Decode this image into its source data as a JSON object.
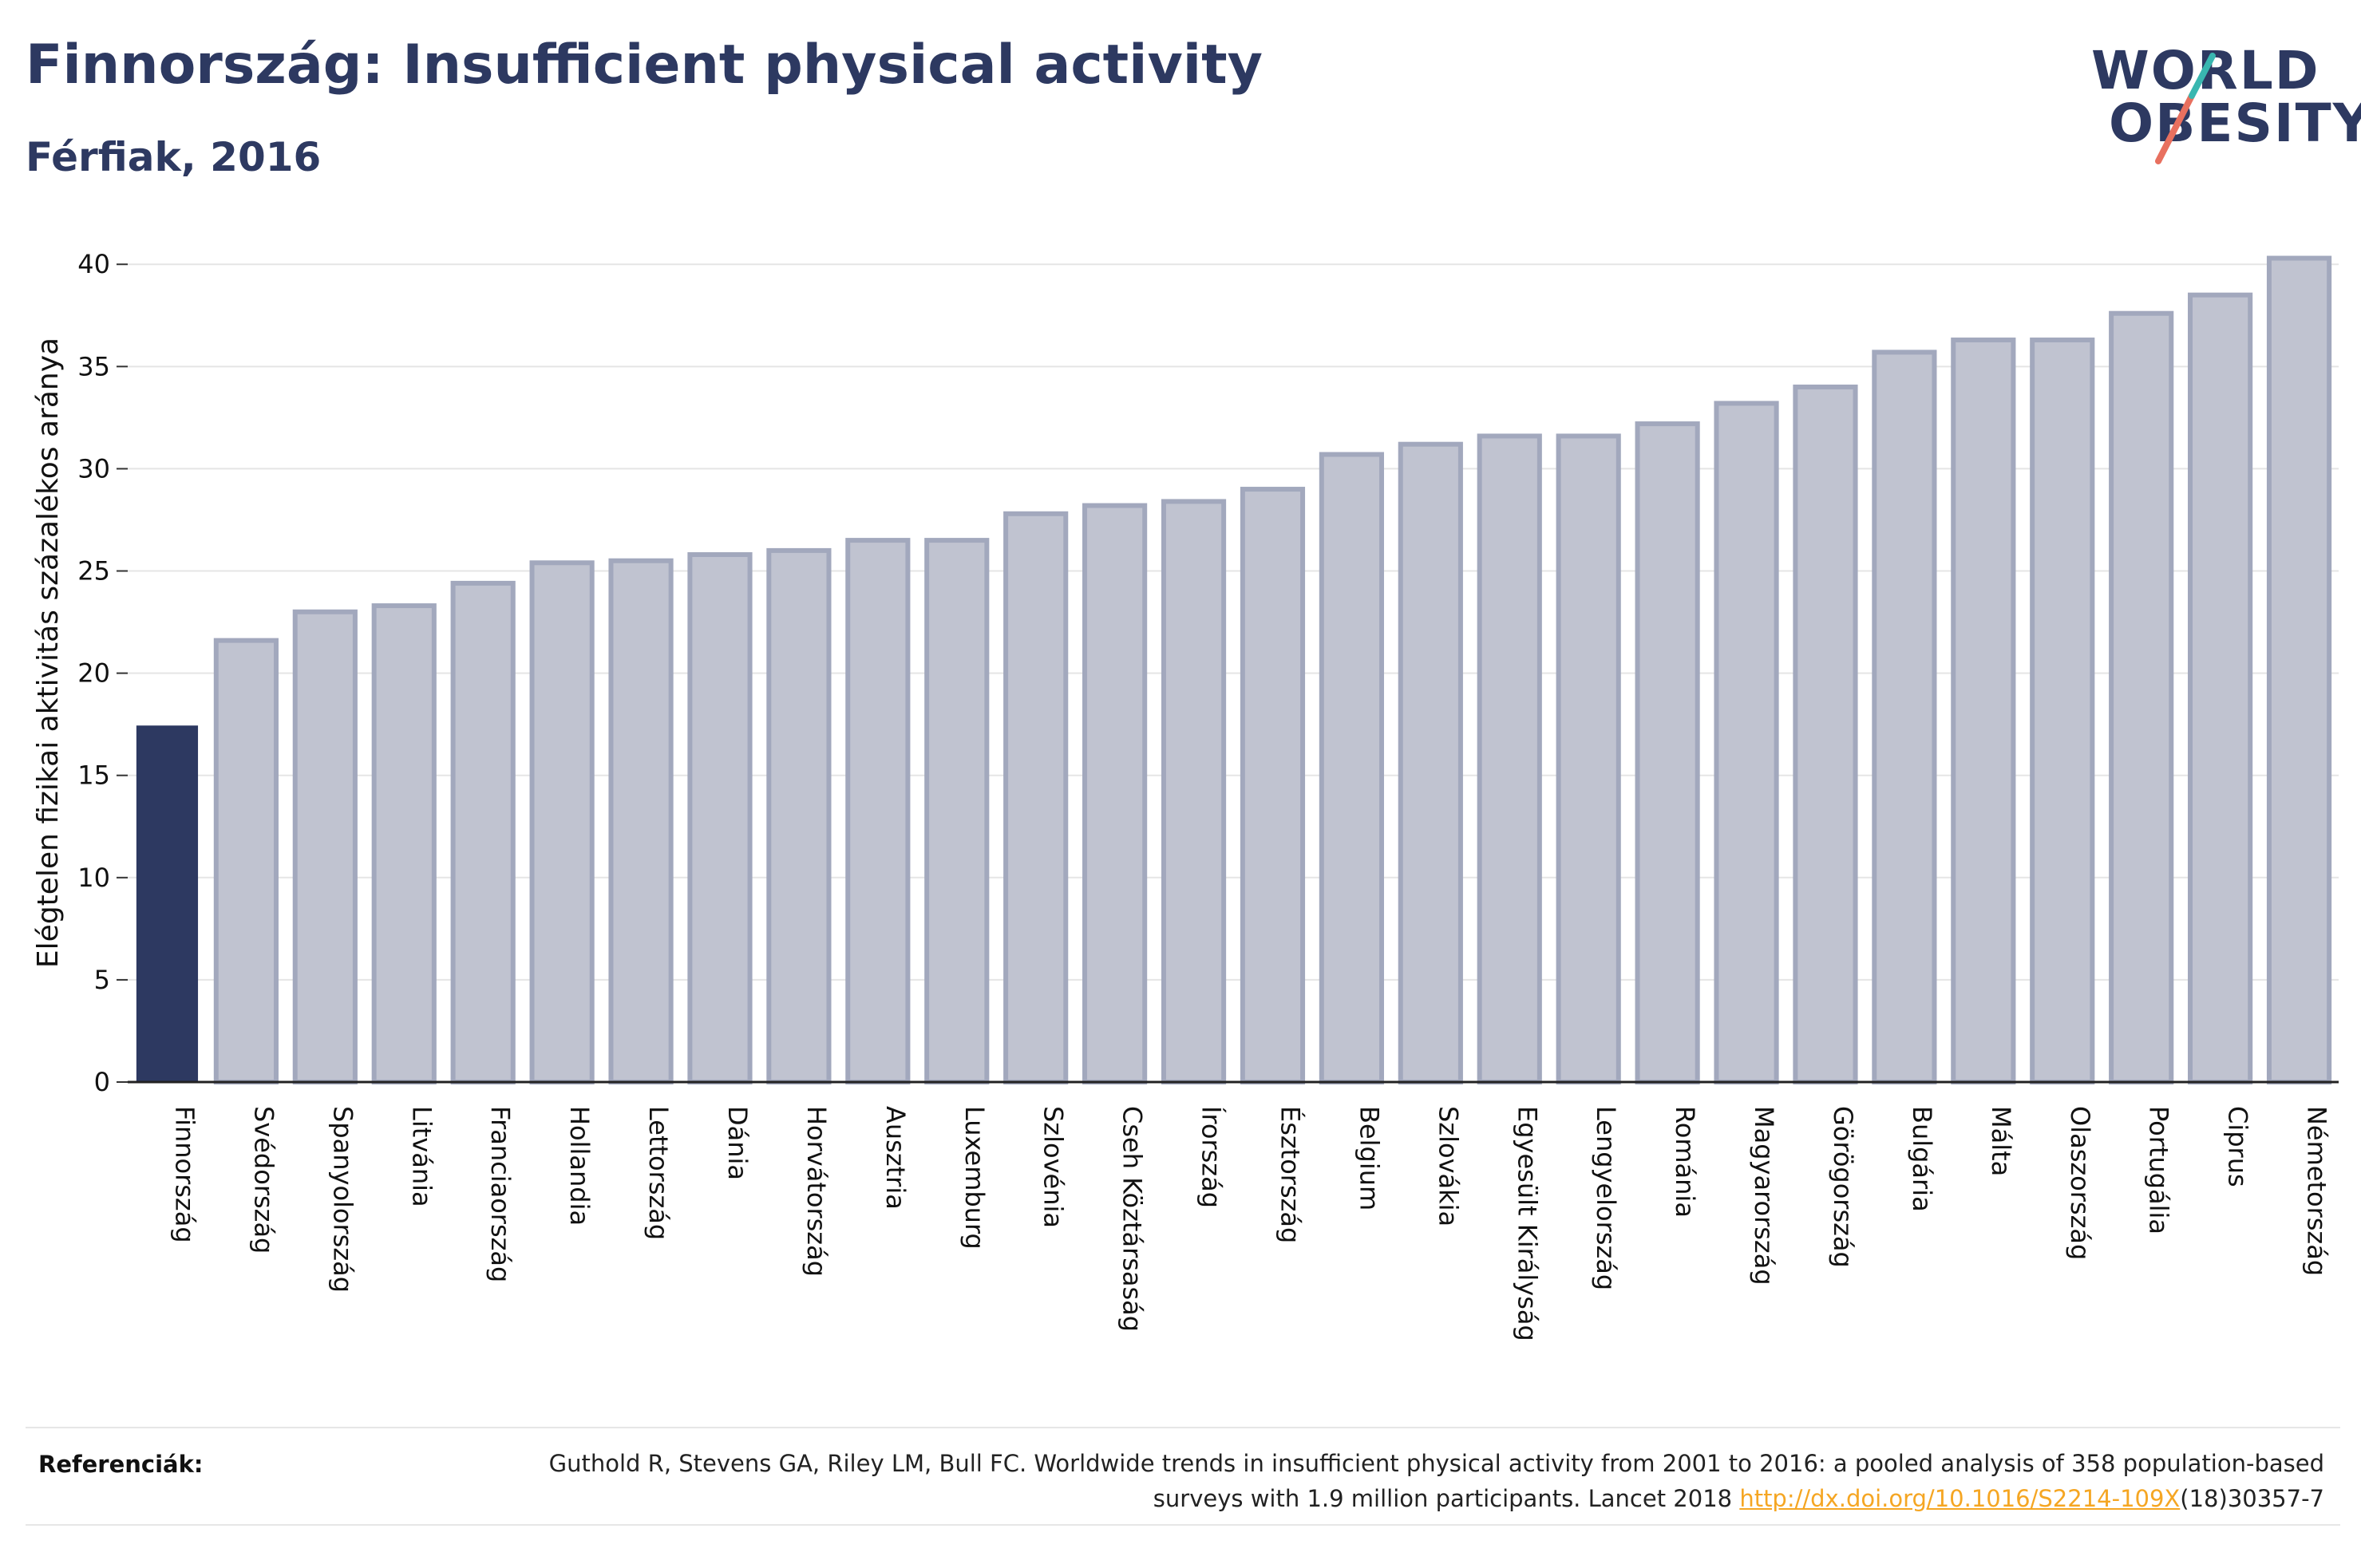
{
  "title": "Finnország: Insufficient physical activity",
  "subtitle": "Férfiak, 2016",
  "logo": {
    "line1": "WORLD",
    "line2": "OBESITY"
  },
  "chart_data": {
    "type": "bar",
    "title": "Finnország: Insufficient physical activity",
    "subtitle": "Férfiak, 2016",
    "ylabel": "Elégtelen fizikai aktivitás százalékos aránya",
    "xlabel": "",
    "ylim": [
      0,
      42
    ],
    "yticks": [
      0,
      5,
      10,
      15,
      20,
      25,
      30,
      35,
      40
    ],
    "grid": true,
    "highlight": "Finnország",
    "categories": [
      "Finnország",
      "Svédország",
      "Spanyolország",
      "Litvánia",
      "Franciaország",
      "Hollandia",
      "Lettország",
      "Dánia",
      "Horvátország",
      "Ausztria",
      "Luxemburg",
      "Szlovénia",
      "Cseh Köztársaság",
      "Írország",
      "Észtország",
      "Belgium",
      "Szlovákia",
      "Egyesült Királyság",
      "Lengyelország",
      "Románia",
      "Magyarország",
      "Görögország",
      "Bulgária",
      "Málta",
      "Olaszország",
      "Portugália",
      "Ciprus",
      "Németország"
    ],
    "values": [
      17.4,
      21.6,
      23.0,
      23.3,
      24.4,
      25.4,
      25.5,
      25.8,
      26.0,
      26.5,
      26.5,
      27.8,
      28.2,
      28.4,
      29.0,
      30.7,
      31.2,
      31.6,
      31.6,
      32.2,
      33.2,
      34.0,
      35.7,
      36.3,
      36.3,
      37.6,
      38.5,
      40.3
    ]
  },
  "colors": {
    "highlight": "#2d3961",
    "bar_fill": "#c0c3d0",
    "bar_stroke": "#a2a8bd",
    "title": "#2d3961",
    "link": "#f5a623"
  },
  "footer": {
    "label": "Referenciák:",
    "text_before": "Guthold R, Stevens GA, Riley LM, Bull FC. Worldwide trends in insufficient physical activity from 2001 to 2016: a pooled analysis of 358 population-based surveys with 1.9 million participants. Lancet 2018 ",
    "link": "http://dx.doi.org/10.1016/S2214-109X",
    "text_after": "(18)30357-7"
  }
}
